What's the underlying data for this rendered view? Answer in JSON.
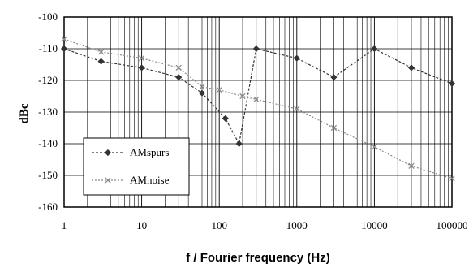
{
  "chart_data": {
    "type": "line",
    "xscale": "log",
    "xlabel": "f / Fourier frequency (Hz)",
    "ylabel": "dBc",
    "xlim": [
      1,
      100000
    ],
    "ylim": [
      -160,
      -100
    ],
    "xticks": [
      1,
      10,
      100,
      1000,
      10000,
      100000
    ],
    "xtick_labels": [
      "1",
      "10",
      "100",
      "1000",
      "10000",
      "100000"
    ],
    "yticks": [
      -100,
      -110,
      -120,
      -130,
      -140,
      -150,
      -160
    ],
    "ytick_labels": [
      "-100",
      "-110",
      "-120",
      "-130",
      "-140",
      "-150",
      "-160"
    ],
    "grid": true,
    "legend_position": "bottom-left",
    "series": [
      {
        "name": "AMspurs",
        "marker": "diamond",
        "color": "#333333",
        "x": [
          1,
          3,
          10,
          30,
          60,
          120,
          180,
          300,
          1000,
          3000,
          10000,
          30000,
          100000
        ],
        "y": [
          -110,
          -114,
          -116,
          -119,
          -124,
          -132,
          -140,
          -110,
          -113,
          -119,
          -110,
          -116,
          -121
        ]
      },
      {
        "name": "AMnoise",
        "marker": "x",
        "color": "#8a8a8a",
        "x": [
          1,
          3,
          10,
          30,
          60,
          100,
          200,
          300,
          1000,
          3000,
          10000,
          30000,
          100000
        ],
        "y": [
          -107,
          -111,
          -113,
          -116,
          -122,
          -123,
          -125,
          -126,
          -129,
          -135,
          -141,
          -147,
          -151
        ]
      }
    ]
  }
}
